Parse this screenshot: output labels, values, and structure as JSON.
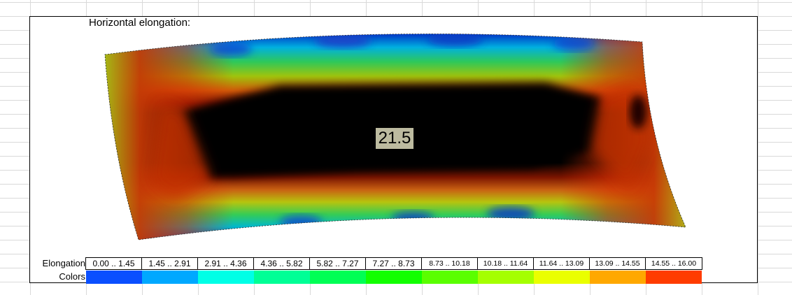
{
  "chart": {
    "title": "Horizontal elongation:",
    "center_value": "21.5"
  },
  "legend": {
    "elongation_label": "Elongation",
    "colors_label": "Colors",
    "ranges": [
      {
        "label": "0.00 .. 1.45",
        "color": "#0a4fff"
      },
      {
        "label": "1.45 .. 2.91",
        "color": "#00a8ff"
      },
      {
        "label": "2.91 .. 4.36",
        "color": "#00ffe6"
      },
      {
        "label": "4.36 .. 5.82",
        "color": "#00ff96"
      },
      {
        "label": "5.82 .. 7.27",
        "color": "#00ff55"
      },
      {
        "label": "7.27 .. 8.73",
        "color": "#12ff00"
      },
      {
        "label": "8.73 .. 10.18",
        "color": "#5aff00"
      },
      {
        "label": "10.18 .. 11.64",
        "color": "#a5ff00"
      },
      {
        "label": "11.64 .. 13.09",
        "color": "#eaff00"
      },
      {
        "label": "13.09 .. 14.55",
        "color": "#ffa800"
      },
      {
        "label": "14.55 .. 16.00",
        "color": "#ff3c00"
      }
    ]
  }
}
